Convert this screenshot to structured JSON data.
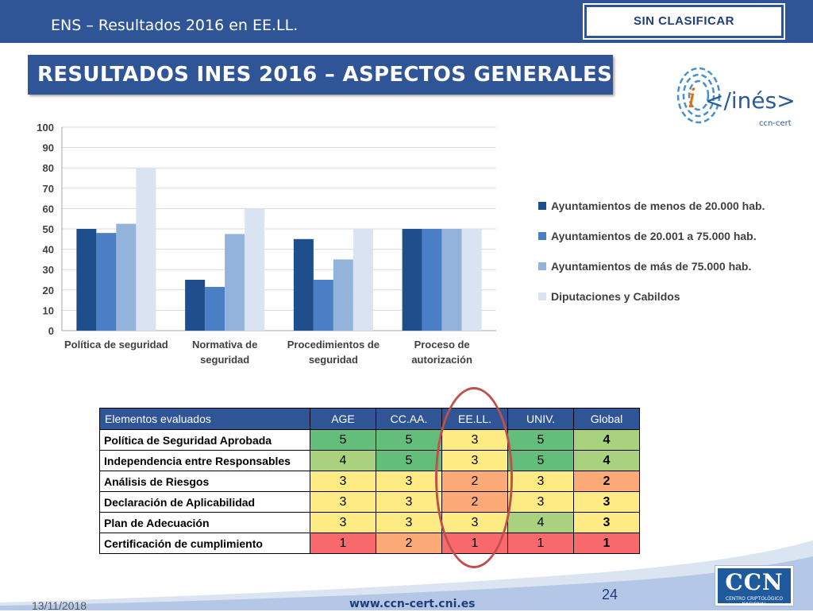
{
  "header": {
    "title": "ENS – Resultados 2016 en EE.LL.",
    "classification": "SIN CLASIFICAR"
  },
  "slide": {
    "title": "RESULTADOS INES 2016 – ASPECTOS GENERALES"
  },
  "logo": {
    "text": "</inés>",
    "sub": "ccn-cert",
    "icon": "fingerprint-icon"
  },
  "chart_data": {
    "type": "bar",
    "title": "",
    "xlabel": "",
    "ylabel": "",
    "ylim": [
      0,
      100
    ],
    "yticks": [
      "0",
      "10",
      "20",
      "30",
      "40",
      "50",
      "60",
      "70",
      "80",
      "90",
      "100"
    ],
    "grid": true,
    "legend_position": "right",
    "categories": [
      "Política de seguridad",
      "Normativa de seguridad",
      "Procedimientos de seguridad",
      "Proceso de autorización"
    ],
    "series": [
      {
        "name": "Ayuntamientos de menos de 20.000 hab.",
        "color": "#1f4e8c",
        "values": [
          50,
          25,
          45,
          50
        ]
      },
      {
        "name": "Ayuntamientos de 20.001 a 75.000 hab.",
        "color": "#4a7ec5",
        "values": [
          48,
          21.5,
          25,
          50
        ]
      },
      {
        "name": "Ayuntamientos de más de 75.000 hab.",
        "color": "#94b3db",
        "values": [
          52.5,
          47.5,
          35,
          50
        ]
      },
      {
        "name": "Diputaciones y Cabildos",
        "color": "#d9e3f1",
        "values": [
          80,
          60,
          50,
          50
        ]
      }
    ]
  },
  "table": {
    "headers": [
      "Elementos evaluados",
      "AGE",
      "CC.AA.",
      "EE.LL.",
      "UNIV.",
      "Global"
    ],
    "rows": [
      {
        "label": "Política de Seguridad Aprobada",
        "values": [
          "5",
          "5",
          "3",
          "5",
          "4"
        ],
        "colors": [
          "#63be7b",
          "#63be7b",
          "#ffeb84",
          "#63be7b",
          "#a9d27f"
        ]
      },
      {
        "label": "Independencia entre Responsables",
        "values": [
          "4",
          "5",
          "3",
          "5",
          "4"
        ],
        "colors": [
          "#a9d27f",
          "#63be7b",
          "#ffeb84",
          "#63be7b",
          "#a9d27f"
        ]
      },
      {
        "label": "Análisis de Riesgos",
        "values": [
          "3",
          "3",
          "2",
          "3",
          "2"
        ],
        "colors": [
          "#ffeb84",
          "#ffeb84",
          "#fbaa77",
          "#ffeb84",
          "#fbaa77"
        ]
      },
      {
        "label": "Declaración de Aplicabilidad",
        "values": [
          "3",
          "3",
          "2",
          "3",
          "3"
        ],
        "colors": [
          "#ffeb84",
          "#ffeb84",
          "#fbaa77",
          "#ffeb84",
          "#ffeb84"
        ]
      },
      {
        "label": "Plan de Adecuación",
        "values": [
          "3",
          "3",
          "3",
          "4",
          "3"
        ],
        "colors": [
          "#ffeb84",
          "#ffeb84",
          "#ffeb84",
          "#a9d27f",
          "#ffeb84"
        ]
      },
      {
        "label": "Certificación de cumplimiento",
        "values": [
          "1",
          "2",
          "1",
          "1",
          "1"
        ],
        "colors": [
          "#f8696b",
          "#fbaa77",
          "#f8696b",
          "#f8696b",
          "#f8696b"
        ]
      }
    ]
  },
  "footer": {
    "date": "13/11/2018",
    "url": "www.ccn-cert.cni.es",
    "page": "24",
    "ccn_logo": "CCN",
    "ccn_sub": "CENTRO CRIPTOLÓGICO NACIONAL"
  },
  "colors": {
    "brand_blue": "#2f5597",
    "highlight_ellipse": "#c0504d"
  }
}
